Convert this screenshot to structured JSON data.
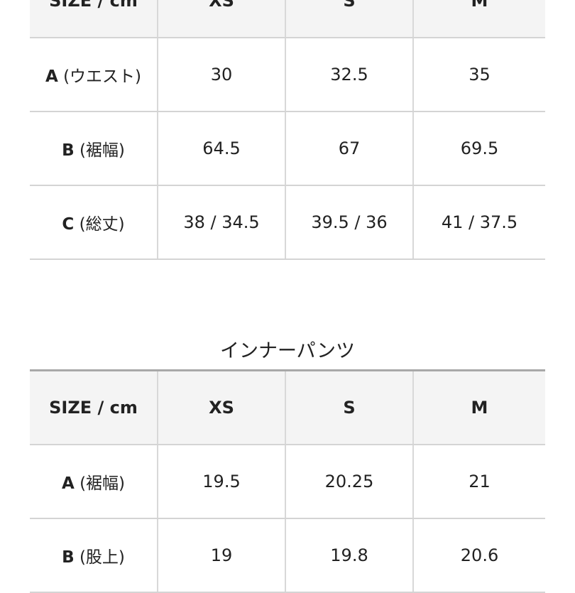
{
  "tables": [
    {
      "title": "",
      "header": [
        "SIZE / cm",
        "XS",
        "S",
        "M"
      ],
      "rows": [
        {
          "key": "A",
          "label": "(ウエスト)",
          "values": [
            "30",
            "32.5",
            "35"
          ]
        },
        {
          "key": "B",
          "label": "(裾幅)",
          "values": [
            "64.5",
            "67",
            "69.5"
          ]
        },
        {
          "key": "C",
          "label": "(総丈)",
          "values": [
            "38 / 34.5",
            "39.5 / 36",
            "41 / 37.5"
          ]
        }
      ]
    },
    {
      "title": "インナーパンツ",
      "header": [
        "SIZE / cm",
        "XS",
        "S",
        "M"
      ],
      "rows": [
        {
          "key": "A",
          "label": "(裾幅)",
          "values": [
            "19.5",
            "20.25",
            "21"
          ]
        },
        {
          "key": "B",
          "label": "(股上)",
          "values": [
            "19",
            "19.8",
            "20.6"
          ]
        }
      ]
    }
  ]
}
